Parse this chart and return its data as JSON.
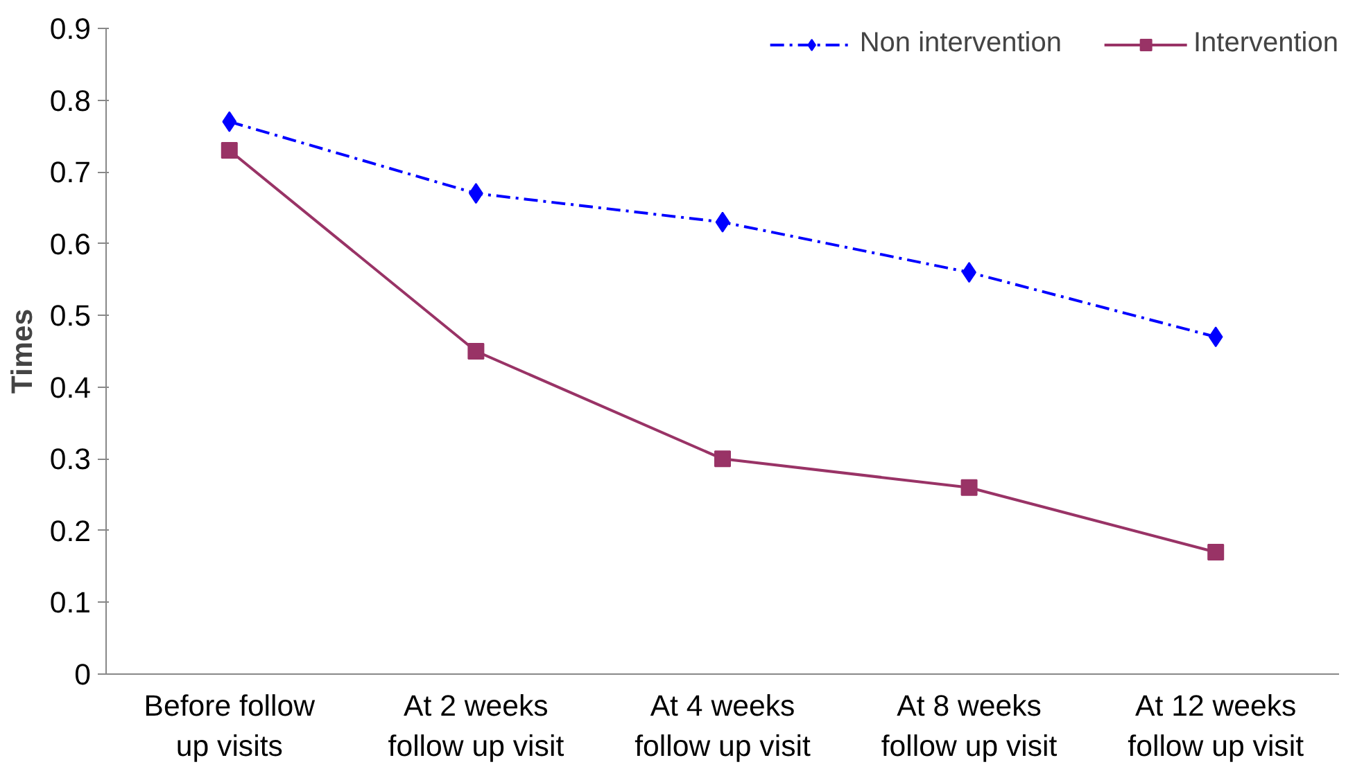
{
  "chart_data": {
    "type": "line",
    "ylabel": "Times",
    "categories": [
      "Before follow up visits",
      "At 2 weeks follow up visit",
      "At 4 weeks follow up visit",
      "At 8 weeks follow up visit",
      "At 12 weeks follow up visit"
    ],
    "series": [
      {
        "name": "Non intervention",
        "color": "#0000ff",
        "values": [
          0.77,
          0.67,
          0.63,
          0.56,
          0.47
        ],
        "marker": "diamond",
        "line_style": "dashed"
      },
      {
        "name": "Intervention",
        "color": "#993366",
        "values": [
          0.73,
          0.45,
          0.3,
          0.26,
          0.17
        ],
        "marker": "square",
        "line_style": "solid"
      }
    ],
    "ylim": [
      0,
      0.9
    ],
    "yticks": [
      0,
      0.1,
      0.2,
      0.3,
      0.4,
      0.5,
      0.6,
      0.7,
      0.8,
      0.9
    ],
    "grid": false,
    "legend": "top right"
  }
}
